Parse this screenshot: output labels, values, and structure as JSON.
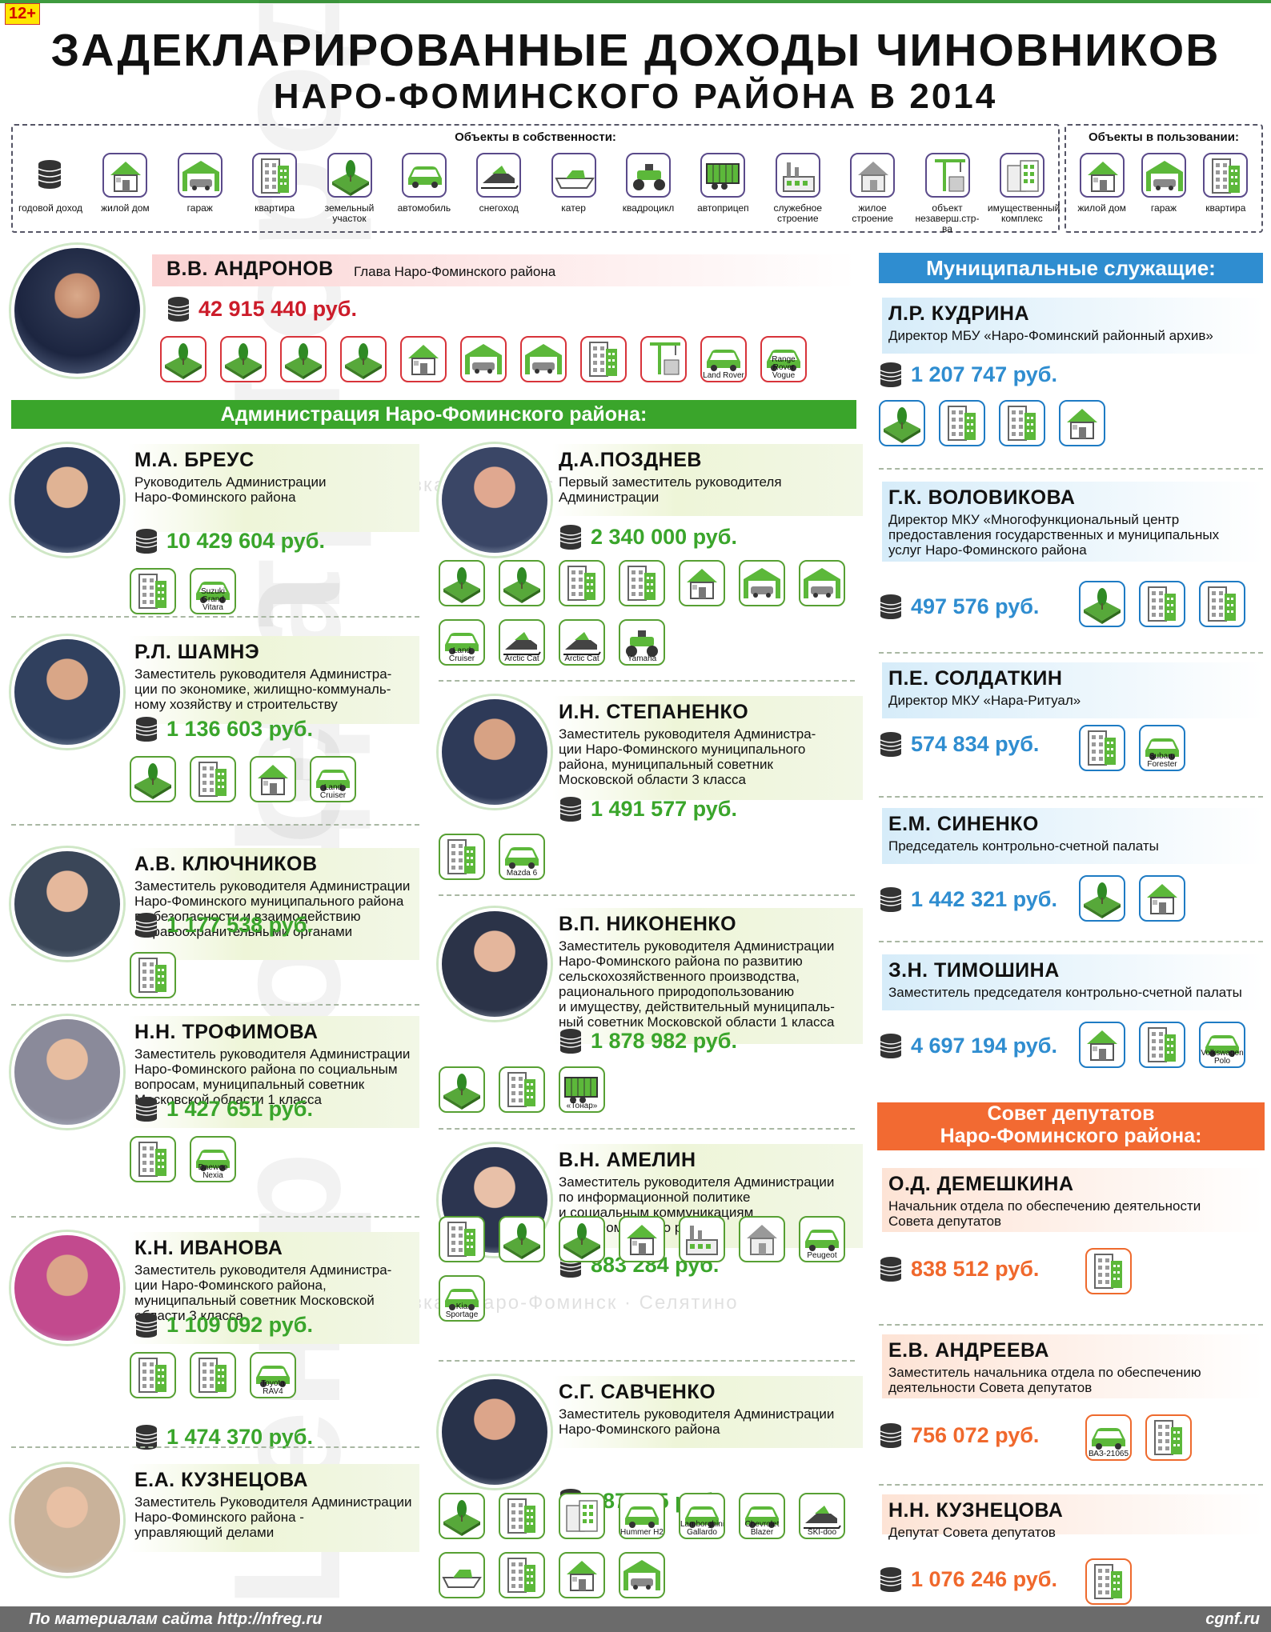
{
  "header": {
    "age_badge": "12+",
    "title_line1": "ЗАДЕКЛАРИРОВАННЫЕ ДОХОДЫ ЧИНОВНИКОВ",
    "title_line2": "НАРО-ФОМИНСКОГО РАЙОНА В 2014"
  },
  "legend": {
    "owned_title": "Объекты в собственности:",
    "used_title": "Объекты в пользовании:",
    "owned": [
      {
        "icon": "coins",
        "label": "годовой доход"
      },
      {
        "icon": "house",
        "label": "жилой дом"
      },
      {
        "icon": "garage",
        "label": "гараж"
      },
      {
        "icon": "flat",
        "label": "квартира"
      },
      {
        "icon": "land",
        "label": "земельный участок"
      },
      {
        "icon": "car",
        "label": "автомобиль"
      },
      {
        "icon": "snowmobile",
        "label": "снегоход"
      },
      {
        "icon": "boat",
        "label": "катер"
      },
      {
        "icon": "atv",
        "label": "квадроцикл"
      },
      {
        "icon": "trailer",
        "label": "автоприцеп"
      },
      {
        "icon": "factory",
        "label": "служебное строение"
      },
      {
        "icon": "house-grey",
        "label": "жилое строение"
      },
      {
        "icon": "crane",
        "label": "объект незаверш.стр-ва"
      },
      {
        "icon": "complex",
        "label": "имущественный комплекс"
      }
    ],
    "used": [
      {
        "icon": "house",
        "label": "жилой дом"
      },
      {
        "icon": "garage",
        "label": "гараж"
      },
      {
        "icon": "flat",
        "label": "квартира"
      }
    ]
  },
  "head": {
    "name": "В.В. АНДРОНОВ",
    "position": "Глава Наро-Фоминского района",
    "income": "42 915 440 руб.",
    "items": [
      {
        "icon": "land"
      },
      {
        "icon": "land"
      },
      {
        "icon": "land"
      },
      {
        "icon": "land"
      },
      {
        "icon": "house"
      },
      {
        "icon": "garage"
      },
      {
        "icon": "garage"
      },
      {
        "icon": "flat"
      },
      {
        "icon": "crane"
      },
      {
        "icon": "car",
        "caption": "Land Rover"
      },
      {
        "icon": "car",
        "caption": "Range Rover Vogue"
      }
    ]
  },
  "sections": {
    "admin": "Администрация Наро-Фоминского района:",
    "muni": "Муниципальные служащие:",
    "council_1": "Совет депутатов",
    "council_2": "Наро-Фоминского района:"
  },
  "admin_left": [
    {
      "name": "М.А. БРЕУС",
      "position": "Руководитель Администрации\nНаро-Фоминского района",
      "income": "10 429 604 руб.",
      "items": [
        {
          "icon": "flat"
        },
        {
          "icon": "car",
          "caption": "Suzuki Grand Vitara"
        }
      ]
    },
    {
      "name": "Р.Л. ШАМНЭ",
      "position": "Заместитель руководителя Администра-\nции по экономике, жилищно-коммуналь-\nному хозяйству и строительству",
      "income": "1 136 603 руб.",
      "items": [
        {
          "icon": "land"
        },
        {
          "icon": "flat"
        },
        {
          "icon": "house"
        },
        {
          "icon": "car",
          "caption": "Land Cruiser"
        }
      ]
    },
    {
      "name": "А.В. КЛЮЧНИКОВ",
      "position": "Заместитель руководителя Администрации\nНаро-Фоминского муниципального района\nпо безопасности и взаимодействию\nс правоохранительными органами",
      "income": "1 177 538 руб.",
      "items": [
        {
          "icon": "flat"
        }
      ]
    },
    {
      "name": "Н.Н. ТРОФИМОВА",
      "position": "Заместитель руководителя Администрации\nНаро-Фоминского района по социальным\nвопросам, муниципальный советник\nМосковской области 1 класса",
      "income": "1 427 651 руб.",
      "items": [
        {
          "icon": "flat"
        },
        {
          "icon": "car",
          "caption": "Daewoo Nexia"
        }
      ]
    },
    {
      "name": "К.Н. ИВАНОВА",
      "position": "Заместитель руководителя Администра-\nции Наро-Фоминского района,\nмуниципальный советник Московской\nобласти 3 класса",
      "income": "1 109 092 руб.",
      "items": [
        {
          "icon": "flat"
        },
        {
          "icon": "flat"
        },
        {
          "icon": "car",
          "caption": "Toyota RAV4"
        }
      ]
    },
    {
      "name": "Е.А. КУЗНЕЦОВА",
      "position": "Заместитель Руководителя Администрации\nНаро-Фоминского района -\nуправляющий делами",
      "income": "1 474 370 руб.",
      "items": []
    }
  ],
  "admin_mid": [
    {
      "name": "Д.А.ПОЗДНЕВ",
      "position": "Первый заместитель руководителя\nАдминистрации",
      "income": "2 340 000 руб.",
      "items": [
        {
          "icon": "land"
        },
        {
          "icon": "land"
        },
        {
          "icon": "flat"
        },
        {
          "icon": "flat"
        },
        {
          "icon": "house"
        },
        {
          "icon": "garage"
        },
        {
          "icon": "garage"
        },
        {
          "icon": "car",
          "caption": "Land Cruiser"
        },
        {
          "icon": "snowmobile",
          "caption": "Arctic Cat"
        },
        {
          "icon": "snowmobile",
          "caption": "Arctic Cat"
        },
        {
          "icon": "atv",
          "caption": "Yamaha"
        }
      ]
    },
    {
      "name": "И.Н. СТЕПАНЕНКО",
      "position": "Заместитель руководителя Администра-\nции Наро-Фоминского муниципального\nрайона, муниципальный советник\nМосковской области 3 класса",
      "income": "1 491 577 руб.",
      "items": [
        {
          "icon": "flat"
        },
        {
          "icon": "car",
          "caption": "Mazda 6"
        }
      ]
    },
    {
      "name": "В.П. НИКОНЕНКО",
      "position": "Заместитель руководителя Администрации\nНаро-Фоминского района по развитию\nсельскохозяйственного производства,\nрационального природопользованию\nи имуществу, действительный муниципаль-\nный советник Московской области 1 класса",
      "income": "1 878 982 руб.",
      "items": [
        {
          "icon": "land"
        },
        {
          "icon": "flat"
        },
        {
          "icon": "trailer",
          "caption": "«Тонар»"
        }
      ]
    },
    {
      "name": "В.Н. АМЕЛИН",
      "position": "Заместитель руководителя Администрации\nпо информационной политике\nи социальным коммуникациям\nНаро-Фоминского района",
      "income": "883 284 руб.",
      "items": [
        {
          "icon": "flat"
        },
        {
          "icon": "land"
        },
        {
          "icon": "land"
        },
        {
          "icon": "house"
        },
        {
          "icon": "factory"
        },
        {
          "icon": "house-grey"
        },
        {
          "icon": "car",
          "caption": "Peugeot"
        },
        {
          "icon": "car",
          "caption": "Kia Sportage"
        }
      ]
    },
    {
      "name": "С.Г. САВЧЕНКО",
      "position": "Заместитель руководителя Администрации\nНаро-Фоминского района",
      "income": "387 955 руб.",
      "items": [
        {
          "icon": "land"
        },
        {
          "icon": "flat"
        },
        {
          "icon": "complex"
        },
        {
          "icon": "car",
          "caption": "Hummer H2"
        },
        {
          "icon": "car",
          "caption": "Lamborghini Gallardo"
        },
        {
          "icon": "car",
          "caption": "Chevrolet Blazer"
        },
        {
          "icon": "snowmobile",
          "caption": "SKI-doo"
        },
        {
          "icon": "boat"
        },
        {
          "icon": "flat"
        },
        {
          "icon": "house"
        },
        {
          "icon": "garage"
        }
      ]
    }
  ],
  "muni": [
    {
      "name": "Л.Р. КУДРИНА",
      "position": "Директор МБУ «Наро-Фоминский районный архив»",
      "income": "1 207 747 руб.",
      "items": [
        {
          "icon": "land"
        },
        {
          "icon": "flat"
        },
        {
          "icon": "flat"
        },
        {
          "icon": "house"
        }
      ]
    },
    {
      "name": "Г.К. ВОЛОВИКОВА",
      "position": "Директор МКУ «Многофункциональный центр\nпредоставления государственных и муниципальных\nуслуг Наро-Фоминского района",
      "income": "497 576 руб.",
      "items": [
        {
          "icon": "land"
        },
        {
          "icon": "flat"
        },
        {
          "icon": "flat"
        }
      ]
    },
    {
      "name": "П.Е. СОЛДАТКИН",
      "position": "Директор МКУ «Нара-Ритуал»",
      "income": "574 834 руб.",
      "items": [
        {
          "icon": "flat"
        },
        {
          "icon": "car",
          "caption": "Subaru Forester"
        }
      ]
    },
    {
      "name": "Е.М. СИНЕНКО",
      "position": "Председатель контрольно-счетной палаты",
      "income": "1 442 321 руб.",
      "items": [
        {
          "icon": "land"
        },
        {
          "icon": "house"
        }
      ]
    },
    {
      "name": "З.Н. ТИМОШИНА",
      "position": "Заместитель председателя контрольно-счетной палаты",
      "income": "4 697 194 руб.",
      "items": [
        {
          "icon": "house"
        },
        {
          "icon": "flat"
        },
        {
          "icon": "car",
          "caption": "Volkswagen Polo"
        }
      ]
    }
  ],
  "council": [
    {
      "name": "О.Д. ДЕМЕШКИНА",
      "position": "Начальник отдела по обеспечению деятельности\nСовета депутатов",
      "income": "838 512 руб.",
      "items": [
        {
          "icon": "flat"
        }
      ]
    },
    {
      "name": "Е.В. АНДРЕЕВА",
      "position": "Заместитель начальника отдела по обеспечению\nдеятельности Совета депутатов",
      "income": "756 072 руб.",
      "items": [
        {
          "icon": "car",
          "caption": "ВАЗ-21065"
        },
        {
          "icon": "flat"
        }
      ]
    },
    {
      "name": "Н.Н. КУЗНЕЦОВА",
      "position": "Депутат Совета депутатов",
      "income": "1 076 246 руб.",
      "items": [
        {
          "icon": "flat"
        }
      ]
    }
  ],
  "watermark": {
    "text1": "Центр Города",
    "text2": "Апрелевка · Наро-Фоминск · Селятино"
  },
  "footer": {
    "source": "По материалам сайта http://nfreg.ru",
    "site": "cgnf.ru"
  },
  "colors": {
    "green": "#3aa52b",
    "red": "#cc1c2a",
    "blue": "#2f8dd0",
    "orange": "#f0682c"
  }
}
